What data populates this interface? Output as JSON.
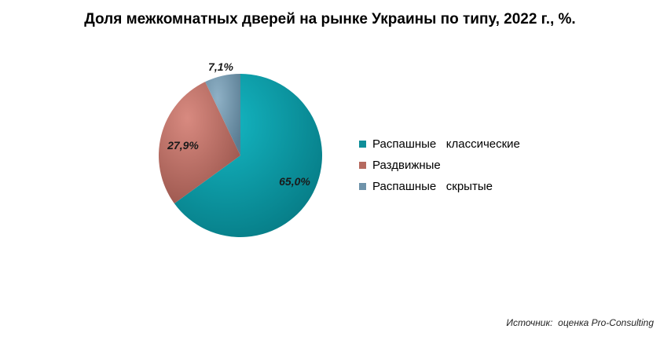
{
  "chart_data": {
    "type": "pie",
    "title": "Доля межкомнатных дверей на рынке Украины по типу, 2022 г., %.",
    "slices": [
      {
        "name": "Распашные   классические",
        "value": 65.0,
        "label": "65,0%",
        "color": "#0e8e99"
      },
      {
        "name": "Раздвижные",
        "value": 27.9,
        "label": "27,9%",
        "color": "#b66a60"
      },
      {
        "name": "Распашные   скрытые",
        "value": 7.1,
        "label": "7,1%",
        "color": "#6f93aa"
      }
    ],
    "legend_position": "right"
  },
  "source_note": "Источник:  оценка Pro-Consulting"
}
